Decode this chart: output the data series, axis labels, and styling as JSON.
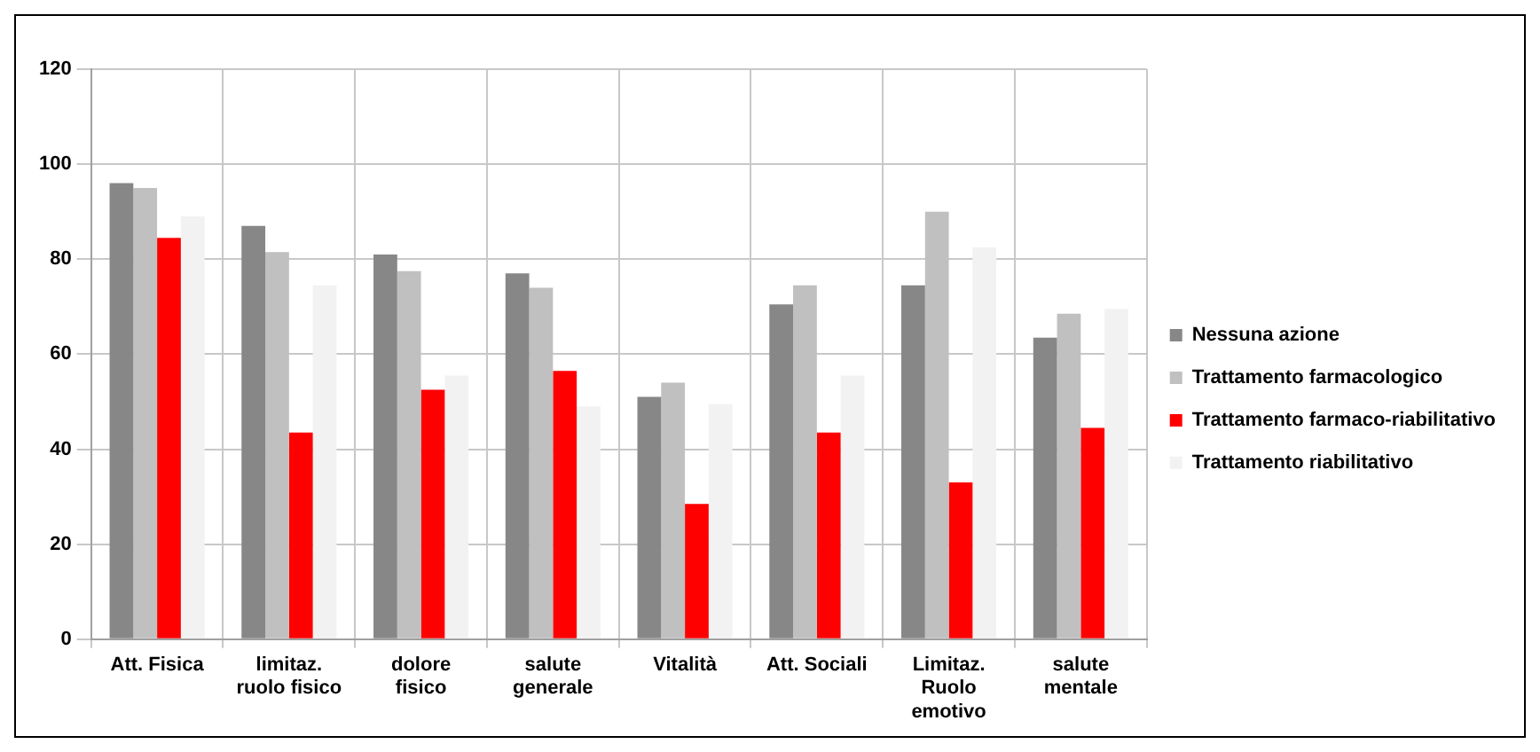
{
  "chart_data": {
    "type": "bar",
    "categories": [
      "Att. Fisica",
      "limitaz.\nruolo fisico",
      "dolore\nfisico",
      "salute\ngenerale",
      "Vitalità",
      "Att. Sociali",
      "Limitaz.\nRuolo\nemotivo",
      "salute\nmentale"
    ],
    "series": [
      {
        "name": "Nessuna azione",
        "color": "#878787",
        "values": [
          96,
          87,
          81,
          77,
          51,
          70.5,
          74.5,
          63.5
        ]
      },
      {
        "name": "Trattamento farmacologico",
        "color": "#c0c0c0",
        "values": [
          95,
          81.5,
          77.5,
          74,
          54,
          74.5,
          90,
          68.5
        ]
      },
      {
        "name": "Trattamento farmaco-riabilitativo",
        "color": "#ff0000",
        "values": [
          84.5,
          43.5,
          52.5,
          56.5,
          28.5,
          43.5,
          33,
          44.5
        ]
      },
      {
        "name": "Trattamento riabilitativo",
        "color": "#f2f2f2",
        "values": [
          89,
          74.5,
          55.5,
          49,
          49.5,
          55.5,
          82.5,
          69.5
        ]
      }
    ],
    "ylim": [
      0,
      120
    ],
    "yticks": [
      0,
      20,
      40,
      60,
      80,
      100,
      120
    ],
    "grid": true,
    "legend": "right"
  }
}
